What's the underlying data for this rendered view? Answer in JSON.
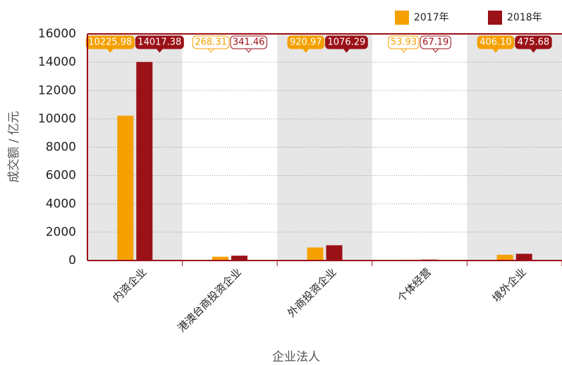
{
  "chart_data": {
    "type": "bar",
    "categories": [
      "内资企业",
      "港澳台商投资企业",
      "外商投资企业",
      "个体经营",
      "境外企业"
    ],
    "series": [
      {
        "name": "2017年",
        "color": "#f5a000",
        "values": [
          10225.98,
          268.31,
          920.97,
          53.93,
          406.1
        ],
        "value_labels": [
          "10225.98",
          "268.31",
          "920.97",
          "53.93",
          "406.10"
        ]
      },
      {
        "name": "2018年",
        "color": "#9b1118",
        "values": [
          14017.38,
          341.46,
          1076.29,
          67.19,
          475.68
        ]
      }
    ],
    "ylim": [
      0,
      16000
    ],
    "yticks": [
      0,
      2000,
      4000,
      6000,
      8000,
      10000,
      12000,
      14000,
      16000
    ],
    "ylabel": "成交额 / 亿元",
    "xlabel": "企业法人",
    "grid": true,
    "legend": "top-right"
  }
}
